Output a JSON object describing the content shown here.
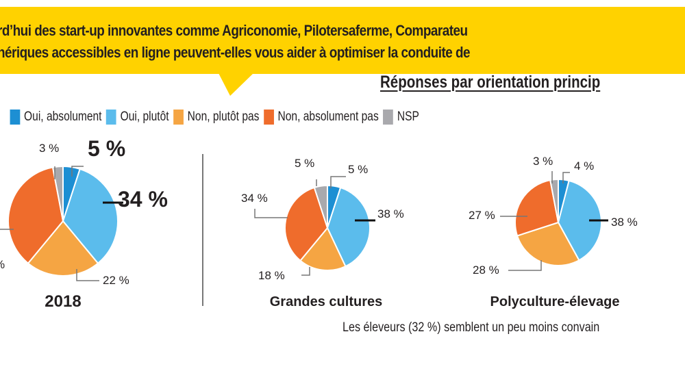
{
  "question": {
    "line1": "rd’hui des start-up innovantes comme Agriconomie, Pilotersaferme, Comparateu",
    "line2": "nériques accessibles en ligne peuvent-elles vous aider à optimiser la conduite de"
  },
  "subtitle": "Réponses par orientation princip",
  "footnote": "Les éleveurs (32 %) semblent un peu moins convain",
  "colors": {
    "band": "#ffd200"
  },
  "chart_data": {
    "type": "pie",
    "legend_position": "top",
    "legend": [
      {
        "label": "Oui, absolument",
        "color": "#1d8fd3"
      },
      {
        "label": "Oui, plutôt",
        "color": "#5bbcec"
      },
      {
        "label": "Non, plutôt pas",
        "color": "#f5a543"
      },
      {
        "label": "Non, absolument pas",
        "color": "#ef6c2c"
      },
      {
        "label": "NSP",
        "color": "#a9a9ad"
      }
    ],
    "pies": [
      {
        "title": "2018",
        "values": [
          5,
          34,
          22,
          36,
          3
        ],
        "labels": [
          "5 %",
          "34 %",
          "22 %",
          "%",
          "3 %"
        ]
      },
      {
        "title": "Grandes cultures",
        "values": [
          5,
          38,
          18,
          34,
          5
        ],
        "labels": [
          "5 %",
          "38 %",
          "18 %",
          "34 %",
          "5 %"
        ]
      },
      {
        "title": "Polyculture-élevage",
        "values": [
          4,
          38,
          28,
          27,
          3
        ],
        "labels": [
          "4 %",
          "38 %",
          "28 %",
          "27 %",
          "3 %"
        ]
      }
    ]
  }
}
